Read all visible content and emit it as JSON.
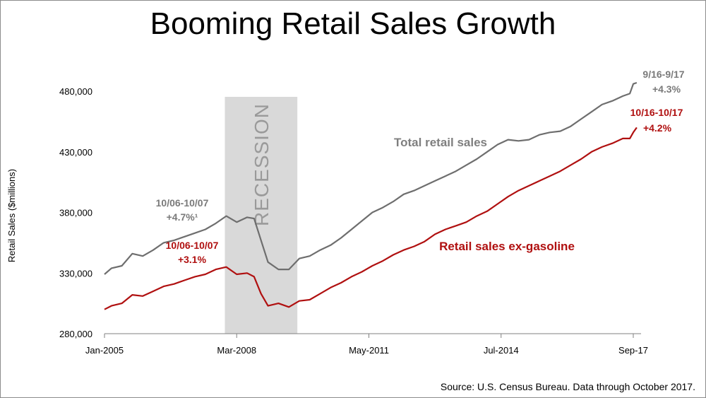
{
  "chart_data": {
    "type": "line",
    "title": "Booming Retail Sales Growth",
    "ylabel": "Retail Sales ($millions)",
    "xlabel": "",
    "ylim": [
      280000,
      500000
    ],
    "yticks": [
      280000,
      330000,
      380000,
      430000,
      480000
    ],
    "ytick_labels": [
      "280,000",
      "330,000",
      "380,000",
      "430,000",
      "480,000"
    ],
    "xticks": [
      {
        "date": "2005-01",
        "label": "Jan-2005"
      },
      {
        "date": "2008-03",
        "label": "Mar-2008"
      },
      {
        "date": "2011-05",
        "label": "May-2011"
      },
      {
        "date": "2014-07",
        "label": "Jul-2014"
      },
      {
        "date": "2017-09",
        "label": "Sep-17"
      }
    ],
    "xrange": [
      "2005-01",
      "2017-10"
    ],
    "recession": {
      "start": "2007-12",
      "end": "2009-06",
      "label": "RECESSION",
      "color": "#d9d9d9"
    },
    "series": [
      {
        "name": "Total retail sales",
        "color": "#6e6e6e",
        "points": [
          [
            "2005-01",
            329000
          ],
          [
            "2005-03",
            334000
          ],
          [
            "2005-06",
            336000
          ],
          [
            "2005-09",
            346000
          ],
          [
            "2005-12",
            344000
          ],
          [
            "2006-03",
            349000
          ],
          [
            "2006-06",
            355000
          ],
          [
            "2006-09",
            357000
          ],
          [
            "2006-12",
            360000
          ],
          [
            "2007-03",
            363000
          ],
          [
            "2007-06",
            366000
          ],
          [
            "2007-09",
            371000
          ],
          [
            "2007-12",
            377000
          ],
          [
            "2008-03",
            372000
          ],
          [
            "2008-06",
            376000
          ],
          [
            "2008-08",
            375000
          ],
          [
            "2008-10",
            357000
          ],
          [
            "2008-12",
            339000
          ],
          [
            "2009-03",
            333000
          ],
          [
            "2009-06",
            333000
          ],
          [
            "2009-09",
            342000
          ],
          [
            "2009-12",
            344000
          ],
          [
            "2010-03",
            349000
          ],
          [
            "2010-06",
            353000
          ],
          [
            "2010-09",
            359000
          ],
          [
            "2010-12",
            366000
          ],
          [
            "2011-03",
            373000
          ],
          [
            "2011-06",
            380000
          ],
          [
            "2011-09",
            384000
          ],
          [
            "2011-12",
            389000
          ],
          [
            "2012-03",
            395000
          ],
          [
            "2012-06",
            398000
          ],
          [
            "2012-09",
            402000
          ],
          [
            "2012-12",
            406000
          ],
          [
            "2013-03",
            410000
          ],
          [
            "2013-06",
            414000
          ],
          [
            "2013-09",
            419000
          ],
          [
            "2013-12",
            424000
          ],
          [
            "2014-03",
            430000
          ],
          [
            "2014-06",
            436000
          ],
          [
            "2014-09",
            440000
          ],
          [
            "2014-12",
            439000
          ],
          [
            "2015-03",
            440000
          ],
          [
            "2015-06",
            444000
          ],
          [
            "2015-09",
            446000
          ],
          [
            "2015-12",
            447000
          ],
          [
            "2016-03",
            451000
          ],
          [
            "2016-06",
            457000
          ],
          [
            "2016-09",
            463000
          ],
          [
            "2016-12",
            469000
          ],
          [
            "2017-03",
            472000
          ],
          [
            "2017-06",
            476000
          ],
          [
            "2017-08",
            478000
          ],
          [
            "2017-09",
            486000
          ],
          [
            "2017-10",
            487000
          ]
        ]
      },
      {
        "name": "Retail sales ex-gasoline",
        "color": "#b01010",
        "points": [
          [
            "2005-01",
            300000
          ],
          [
            "2005-03",
            303000
          ],
          [
            "2005-06",
            305000
          ],
          [
            "2005-09",
            312000
          ],
          [
            "2005-12",
            311000
          ],
          [
            "2006-03",
            315000
          ],
          [
            "2006-06",
            319000
          ],
          [
            "2006-09",
            321000
          ],
          [
            "2006-12",
            324000
          ],
          [
            "2007-03",
            327000
          ],
          [
            "2007-06",
            329000
          ],
          [
            "2007-09",
            333000
          ],
          [
            "2007-12",
            335000
          ],
          [
            "2008-03",
            329000
          ],
          [
            "2008-06",
            330000
          ],
          [
            "2008-08",
            327000
          ],
          [
            "2008-10",
            313000
          ],
          [
            "2008-12",
            303000
          ],
          [
            "2009-03",
            305000
          ],
          [
            "2009-06",
            302000
          ],
          [
            "2009-09",
            307000
          ],
          [
            "2009-12",
            308000
          ],
          [
            "2010-03",
            313000
          ],
          [
            "2010-06",
            318000
          ],
          [
            "2010-09",
            322000
          ],
          [
            "2010-12",
            327000
          ],
          [
            "2011-03",
            331000
          ],
          [
            "2011-06",
            336000
          ],
          [
            "2011-09",
            340000
          ],
          [
            "2011-12",
            345000
          ],
          [
            "2012-03",
            349000
          ],
          [
            "2012-06",
            352000
          ],
          [
            "2012-09",
            356000
          ],
          [
            "2012-12",
            362000
          ],
          [
            "2013-03",
            366000
          ],
          [
            "2013-06",
            369000
          ],
          [
            "2013-09",
            372000
          ],
          [
            "2013-12",
            377000
          ],
          [
            "2014-03",
            381000
          ],
          [
            "2014-06",
            387000
          ],
          [
            "2014-09",
            393000
          ],
          [
            "2014-12",
            398000
          ],
          [
            "2015-03",
            402000
          ],
          [
            "2015-06",
            406000
          ],
          [
            "2015-09",
            410000
          ],
          [
            "2015-12",
            414000
          ],
          [
            "2016-03",
            419000
          ],
          [
            "2016-06",
            424000
          ],
          [
            "2016-09",
            430000
          ],
          [
            "2016-12",
            434000
          ],
          [
            "2017-03",
            437000
          ],
          [
            "2017-06",
            441000
          ],
          [
            "2017-08",
            441000
          ],
          [
            "2017-09",
            446000
          ],
          [
            "2017-10",
            450000
          ]
        ]
      }
    ],
    "annotations": [
      {
        "id": "total-2007-period",
        "lines": [
          "10/06-10/07",
          "+4.7%¹"
        ],
        "style": "gray"
      },
      {
        "id": "exgas-2007-period",
        "lines": [
          "10/06-10/07",
          "+3.1%"
        ],
        "style": "red"
      },
      {
        "id": "total-2017-period",
        "lines": [
          "9/16-9/17",
          "+4.3%"
        ],
        "style": "gray"
      },
      {
        "id": "exgas-2017-period",
        "lines": [
          "10/16-10/17",
          "+4.2%"
        ],
        "style": "red"
      },
      {
        "id": "total-series-label",
        "lines": [
          "Total retail sales"
        ],
        "style": "gray"
      },
      {
        "id": "exgas-series-label",
        "lines": [
          "Retail sales ex-gasoline"
        ],
        "style": "red"
      }
    ],
    "source": "Source: U.S. Census Bureau. Data through October 2017.",
    "grid": false
  }
}
